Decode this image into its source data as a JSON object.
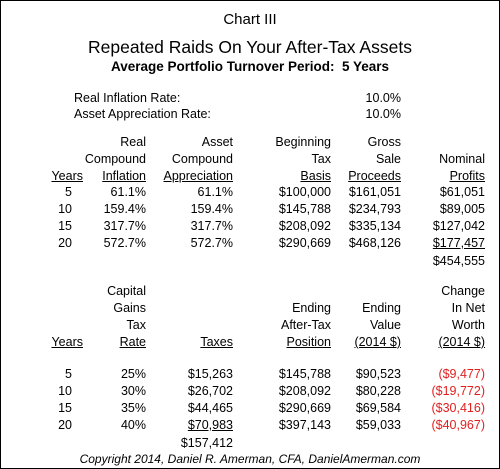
{
  "header": {
    "title": "Chart III",
    "headline": "Repeated Raids On Your After-Tax Assets",
    "subtitle": "Average Portfolio Turnover Period:  5 Years"
  },
  "rates": [
    {
      "label": "Real Inflation Rate:",
      "value": "10.0%"
    },
    {
      "label": "Asset Appreciation Rate:",
      "value": "10.0%"
    }
  ],
  "table1": {
    "columns": [
      [
        "Years"
      ],
      [
        "Real",
        "Compound",
        "Inflation"
      ],
      [
        "Asset",
        "Compound",
        "Appreciation"
      ],
      [
        "Beginning",
        "Tax",
        "Basis"
      ],
      [
        "Gross",
        "Sale",
        "Proceeds"
      ],
      [
        "Nominal",
        "Profits"
      ]
    ],
    "rows": [
      [
        "5",
        "61.1%",
        "61.1%",
        "$100,000",
        "$161,051",
        "$61,051"
      ],
      [
        "10",
        "159.4%",
        "159.4%",
        "$145,788",
        "$234,793",
        "$89,005"
      ],
      [
        "15",
        "317.7%",
        "317.7%",
        "$208,092",
        "$335,134",
        "$127,042"
      ],
      [
        "20",
        "572.7%",
        "572.7%",
        "$290,669",
        "$468,126",
        "$177,457"
      ]
    ],
    "total": "$454,555"
  },
  "table2": {
    "columns": [
      [
        "Years"
      ],
      [
        "Capital",
        "Gains",
        "Tax",
        "Rate"
      ],
      [
        "Taxes"
      ],
      [
        "Ending",
        "After-Tax",
        "Position"
      ],
      [
        "Ending",
        "Value",
        "(2014 $)"
      ],
      [
        "Change",
        "In Net",
        "Worth",
        "(2014 $)"
      ]
    ],
    "rows": [
      [
        "5",
        "25%",
        "$15,263",
        "$145,788",
        "$90,523",
        "($9,477)"
      ],
      [
        "10",
        "30%",
        "$26,702",
        "$208,092",
        "$80,228",
        "($19,772)"
      ],
      [
        "15",
        "35%",
        "$44,465",
        "$290,669",
        "$69,584",
        "($30,416)"
      ],
      [
        "20",
        "40%",
        "$70,983",
        "$397,143",
        "$59,033",
        "($40,967)"
      ]
    ],
    "total": "$157,412"
  },
  "footer": "Copyright 2014, Daniel R. Amerman, CFA, DanielAmerman.com"
}
